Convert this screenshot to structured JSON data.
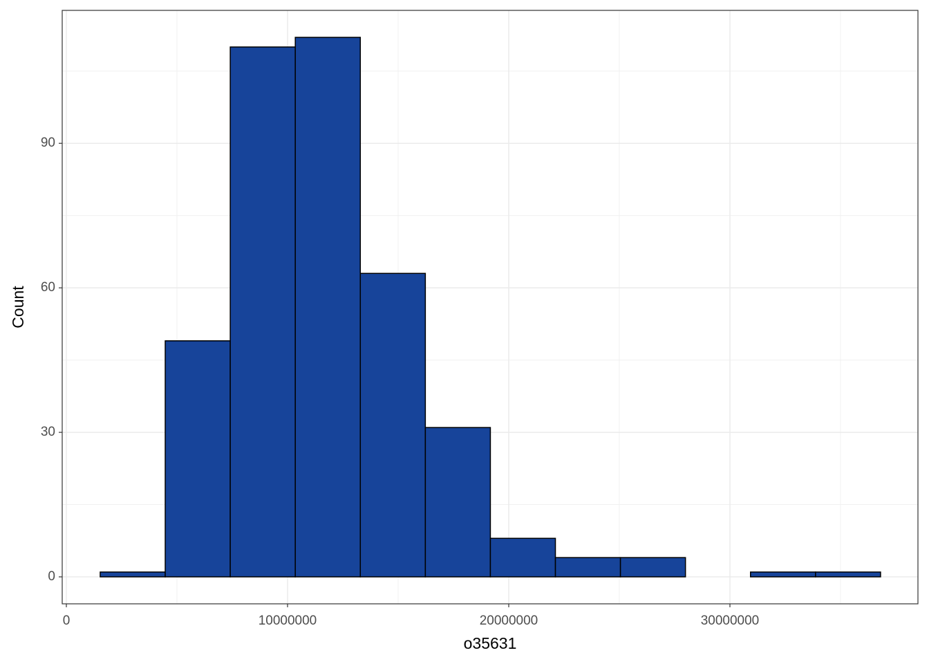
{
  "chart_data": {
    "type": "histogram",
    "x_label": "o35631",
    "y_label": "Count",
    "bins": [
      1530000,
      4470000,
      7410000,
      10350000,
      13290000,
      16230000,
      19170000,
      22110000,
      25050000,
      27990000,
      30930000,
      33870000,
      36810000
    ],
    "values": [
      1,
      49,
      110,
      112,
      63,
      31,
      8,
      4,
      4,
      0,
      1,
      1
    ],
    "color": "#17449a",
    "xlim": [
      -187500,
      38500000
    ],
    "xticks": [
      0,
      10000000,
      20000000,
      30000000
    ],
    "ylim": [
      -5.6,
      117.6
    ],
    "yticks": [
      0,
      30,
      60,
      90
    ],
    "grid": true,
    "minor_grid": true
  }
}
